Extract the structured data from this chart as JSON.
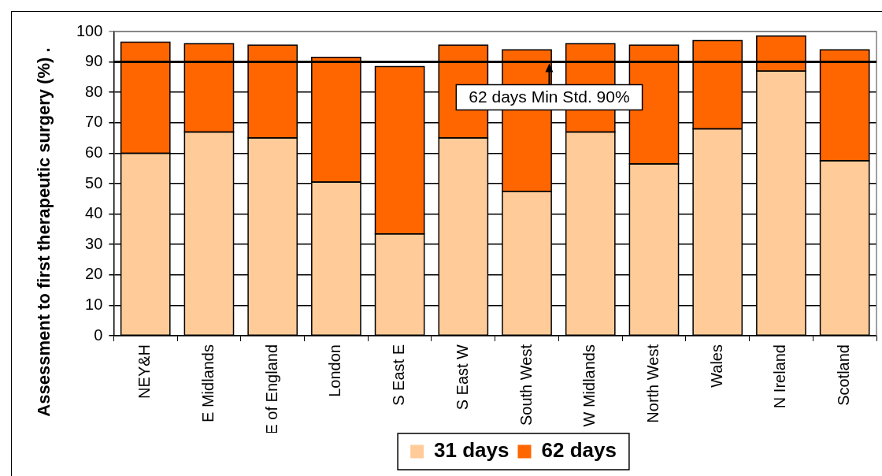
{
  "chart_data": {
    "type": "bar",
    "stacked": true,
    "categories": [
      "NEY&H",
      "E Midlands",
      "E of England",
      "London",
      "S East E",
      "S East W",
      "South West",
      "W Midlands",
      "North West",
      "Wales",
      "N Ireland",
      "Scotland"
    ],
    "series": [
      {
        "name": "31 days",
        "color": "#ffcc99",
        "values": [
          60,
          67,
          65,
          50.5,
          33.5,
          65,
          47.5,
          67,
          56.5,
          68,
          87,
          57.5
        ]
      },
      {
        "name": "62 days",
        "color": "#ff6600",
        "values": [
          36.5,
          29,
          30.5,
          41,
          55,
          30.5,
          46.5,
          29,
          39,
          29,
          11.5,
          36.5
        ]
      }
    ],
    "ylabel": "Assessment to first therapeutic surgery (%) .",
    "ylim": [
      0,
      100
    ],
    "yticks": [
      0,
      10,
      20,
      30,
      40,
      50,
      60,
      70,
      80,
      90,
      100
    ],
    "grid": "y",
    "legend": "bottom",
    "ref_lines": [
      {
        "axis": "y",
        "value": 90,
        "label": "62 days Min Std. 90%",
        "color": "#000000"
      }
    ]
  }
}
